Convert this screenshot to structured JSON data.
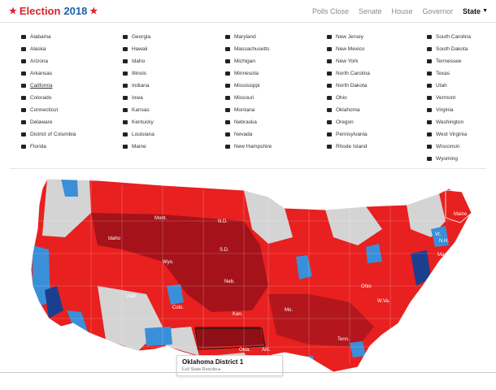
{
  "header": {
    "title": "Election",
    "year": "2018",
    "nav": [
      "Polls Close",
      "Senate",
      "House",
      "Governor"
    ],
    "state_menu": "State"
  },
  "states": [
    [
      "Alabama",
      "Alaska",
      "Arizona",
      "Arkansas",
      "California",
      "Colorado",
      "Connecticut",
      "Delaware",
      "District of Columbia",
      "Florida"
    ],
    [
      "Georgia",
      "Hawaii",
      "Idaho",
      "Illinois",
      "Indiana",
      "Iowa",
      "Kansas",
      "Kentucky",
      "Louisiana",
      "Maine"
    ],
    [
      "Maryland",
      "Massachusetts",
      "Michigan",
      "Minnesota",
      "Mississippi",
      "Missouri",
      "Montana",
      "Nebraska",
      "Nevada",
      "New Hampshire"
    ],
    [
      "New Jersey",
      "New Mexico",
      "New York",
      "North Carolina",
      "North Dakota",
      "Ohio",
      "Oklahoma",
      "Oregon",
      "Pennsylvania",
      "Rhode Island"
    ],
    [
      "South Carolina",
      "South Dakota",
      "Tennessee",
      "Texas",
      "Utah",
      "Vermont",
      "Virginia",
      "Washington",
      "West Virginia",
      "Wisconsin",
      "Wyoming"
    ]
  ],
  "active_state": "California",
  "map": {
    "labels": {
      "mont": "Mont.",
      "nd": "N.D.",
      "idaho": "Idaho",
      "wyo": "Wyo.",
      "sd": "S.D.",
      "neb": "Neb.",
      "utah": "Utah",
      "colo": "Colo.",
      "kan": "Kan.",
      "mo": "Mo.",
      "ohio": "Ohio",
      "wva": "W.Va.",
      "tenn": "Tenn.",
      "ark": "Ark.",
      "okla": "Okla.",
      "maine": "Maine",
      "vt": "Vt.",
      "nh": "N.H.",
      "mass": "Mass."
    },
    "colors": {
      "rep": "#e8201f",
      "rep_dark": "#a5121a",
      "dem": "#3a8fd9",
      "dem_dark": "#1b3f8f",
      "none": "#d4d4d4"
    }
  },
  "tooltip": {
    "title": "Oklahoma District 1",
    "link": "Full State Results ▸"
  }
}
